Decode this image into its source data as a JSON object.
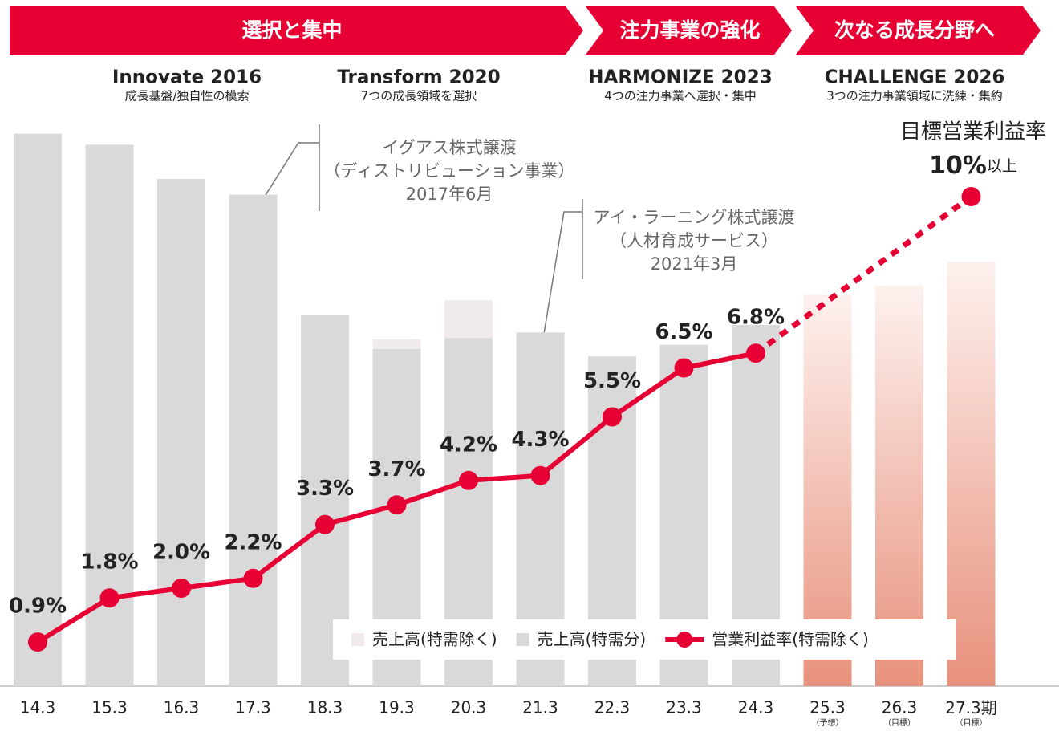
{
  "chart_data": {
    "type": "bar_line",
    "banners": [
      "選択と集中",
      "注力事業の強化",
      "次なる成長分野へ"
    ],
    "phases": [
      {
        "name": "Innovate 2016",
        "subtitle": "成長基盤/独自性の模索"
      },
      {
        "name": "Transform 2020",
        "subtitle": "7つの成長領域を選択"
      },
      {
        "name": "HARMONIZE 2023",
        "subtitle": "4つの注力事業へ選択・集中"
      },
      {
        "name": "CHALLENGE 2026",
        "subtitle": "3つの注力事業領域に洗練・集約"
      }
    ],
    "annotations": [
      {
        "lines": [
          "イグアス株式譲渡",
          "（ディストリビューション事業）",
          "2017年6月"
        ]
      },
      {
        "lines": [
          "アイ・ラーニング株式譲渡",
          "（人材育成サービス）",
          "2021年3月"
        ]
      }
    ],
    "categories": [
      "14.3",
      "15.3",
      "16.3",
      "17.3",
      "18.3",
      "19.3",
      "20.3",
      "21.3",
      "22.3",
      "23.3",
      "24.3",
      "25.3",
      "26.3",
      "27.3"
    ],
    "category_notes": [
      null,
      null,
      null,
      null,
      null,
      null,
      null,
      null,
      null,
      null,
      null,
      "（予想）",
      "（目標）",
      "（目標）"
    ],
    "x_unit": "期",
    "ylim": [
      0,
      14
    ],
    "y2lim": [
      0,
      100
    ],
    "series": [
      {
        "name": "売上高(特需分)",
        "color": "#d9d9d9",
        "axis": "y2",
        "forecast_colors": [
          "#fdf1ee",
          "#e8917c"
        ],
        "values": [
          80.6,
          79,
          74,
          71.7,
          54.2,
          49.2,
          50.8,
          51.6,
          48.1,
          49.8,
          52.7,
          57.1,
          58.4,
          61.9
        ]
      },
      {
        "name": "売上高(特需除く)",
        "color": "#f1eaea",
        "axis": "y2",
        "values": [
          null,
          null,
          null,
          null,
          null,
          1.4,
          5.5,
          null,
          null,
          null,
          null,
          null,
          null,
          null
        ]
      },
      {
        "name": "営業利益率(特需除く)",
        "color": "#e60033",
        "values": [
          0.9,
          1.8,
          2.0,
          2.2,
          3.3,
          3.7,
          4.2,
          4.3,
          5.5,
          6.5,
          6.8,
          null,
          null,
          null
        ],
        "value_labels": [
          "0.9%",
          "1.8%",
          "2.0%",
          "2.2%",
          "3.3%",
          "3.7%",
          "4.2%",
          "4.3%",
          "5.5%",
          "6.5%",
          "6.8%",
          null,
          null,
          null
        ]
      }
    ],
    "target": {
      "label": "目標営業利益率",
      "value": 10,
      "value_label": "10%",
      "suffix": "以上"
    },
    "legend_order": [
      1,
      0,
      2
    ]
  }
}
